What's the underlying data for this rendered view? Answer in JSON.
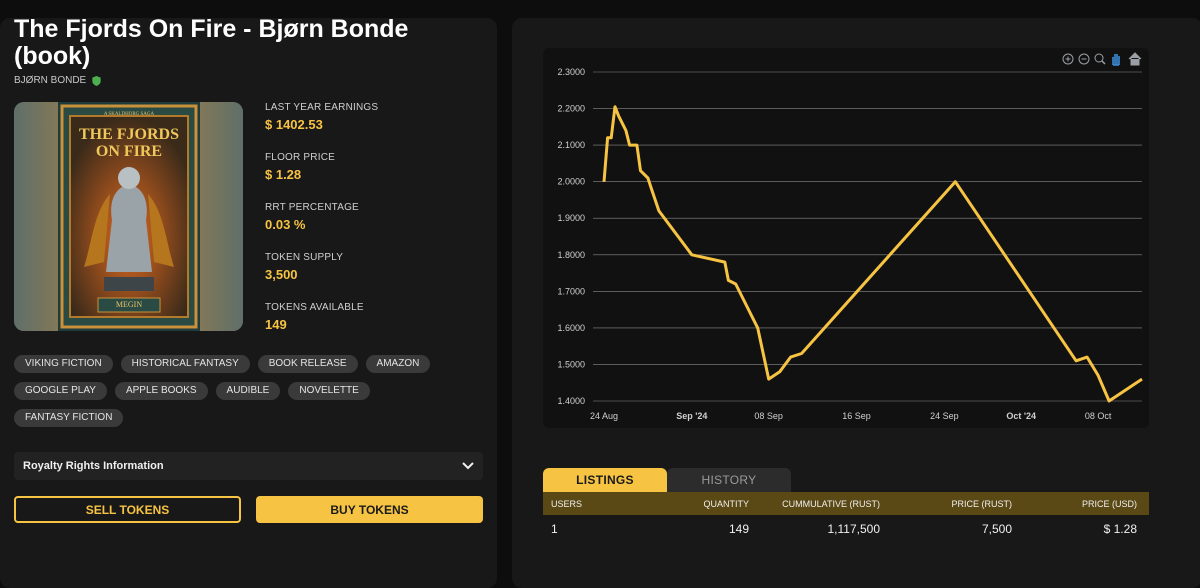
{
  "book": {
    "title": "The Fjords On Fire - Bjørn Bonde (book)",
    "author": "BJØRN BONDE",
    "cover": {
      "series": "A SKALDHORG SAGA",
      "title_lines": [
        "THE FJORDS",
        "ON FIRE"
      ],
      "publisher": "MEGIN"
    }
  },
  "stats": [
    {
      "label": "LAST YEAR EARNINGS",
      "value": "$ 1402.53"
    },
    {
      "label": "FLOOR PRICE",
      "value": "$ 1.28"
    },
    {
      "label": "RRT PERCENTAGE",
      "value": "0.03 %"
    },
    {
      "label": "TOKEN SUPPLY",
      "value": "3,500"
    },
    {
      "label": "TOKENS AVAILABLE",
      "value": "149"
    }
  ],
  "tags": [
    "VIKING FICTION",
    "HISTORICAL FANTASY",
    "BOOK RELEASE",
    "AMAZON",
    "GOOGLE PLAY",
    "APPLE BOOKS",
    "AUDIBLE",
    "NOVELETTE",
    "FANTASY FICTION"
  ],
  "royalty": {
    "label": "Royalty Rights Information"
  },
  "actions": {
    "sell": "SELL TOKENS",
    "buy": "BUY TOKENS"
  },
  "colors": {
    "accent": "#f6c343",
    "verified": "#4caf50",
    "panel": "#191818"
  },
  "chart_toolbar": [
    "zoom-in-icon",
    "zoom-out-icon",
    "magnifier-icon",
    "pan-hand-icon",
    "home-icon"
  ],
  "chart_data": {
    "type": "line",
    "series": [
      {
        "x": [
          "2024-08-24",
          "2024-08-24",
          "2024-08-24",
          "2024-08-25",
          "2024-08-25",
          "2024-08-26",
          "2024-08-26",
          "2024-08-27",
          "2024-08-27",
          "2024-08-28",
          "2024-08-28",
          "2024-08-29",
          "2024-09-01",
          "2024-09-04",
          "2024-09-04",
          "2024-09-05",
          "2024-09-06",
          "2024-09-07",
          "2024-09-08",
          "2024-09-09",
          "2024-09-10",
          "2024-09-11",
          "2024-09-25",
          "2024-10-06",
          "2024-10-07",
          "2024-10-08",
          "2024-10-09",
          "2024-10-12"
        ],
        "y": [
          2.0,
          2.12,
          2.12,
          2.205,
          2.18,
          2.14,
          2.1,
          2.1,
          2.03,
          2.01,
          1.98,
          1.92,
          1.8,
          1.78,
          1.73,
          1.72,
          1.66,
          1.6,
          1.46,
          1.48,
          1.52,
          1.53,
          2.0,
          1.51,
          1.52,
          1.47,
          1.4,
          1.46
        ]
      }
    ],
    "x_ticks": [
      {
        "date": "2024-08-24",
        "label": "24 Aug",
        "bold": false
      },
      {
        "date": "2024-09-01",
        "label": "Sep '24",
        "bold": true
      },
      {
        "date": "2024-09-08",
        "label": "08 Sep",
        "bold": false
      },
      {
        "date": "2024-09-16",
        "label": "16 Sep",
        "bold": false
      },
      {
        "date": "2024-09-24",
        "label": "24 Sep",
        "bold": false
      },
      {
        "date": "2024-10-01",
        "label": "Oct '24",
        "bold": true
      },
      {
        "date": "2024-10-08",
        "label": "08 Oct",
        "bold": false
      }
    ],
    "y_ticks": [
      "1.4000",
      "1.5000",
      "1.6000",
      "1.7000",
      "1.8000",
      "1.9000",
      "2.0000",
      "2.1000",
      "2.2000",
      "2.3000"
    ],
    "ylim": [
      1.4,
      2.3
    ],
    "xlim": [
      "2024-08-23",
      "2024-10-12"
    ],
    "grid": true,
    "color": "#f6c343"
  },
  "tabs": [
    {
      "label": "LISTINGS",
      "active": true
    },
    {
      "label": "HISTORY",
      "active": false
    }
  ],
  "table": {
    "headers": [
      "USERS",
      "QUANTITY",
      "CUMMULATIVE (RUST)",
      "PRICE (RUST)",
      "PRICE (USD)"
    ],
    "rows": [
      [
        "1",
        "149",
        "1,117,500",
        "7,500",
        "$ 1.28"
      ]
    ]
  }
}
